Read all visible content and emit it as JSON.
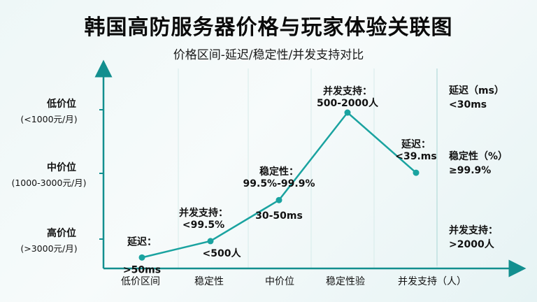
{
  "title": "韩国高防服务器价格与玩家体验关联图",
  "subtitle": "价格区间-延迟/稳定性/并发支持对比",
  "colors": {
    "line": "#1aa3a0",
    "axis": "#138f8f",
    "text": "#111111"
  },
  "chart_data": {
    "type": "line",
    "categories": [
      "低价区间",
      "稳定性",
      "中价位",
      "稳定性验",
      "并发支持（人）"
    ],
    "y_tick_labels": [
      {
        "main": "高价位",
        "sub": "(>3000元/月)"
      },
      {
        "main": "中价位",
        "sub": "(1000-3000元/月)"
      },
      {
        "main": "低价位",
        "sub": "(<1000元/月)"
      }
    ],
    "series": [
      {
        "values": [
          0.2,
          0.5,
          1.25,
          2.85,
          1.75
        ]
      }
    ],
    "ylim": [
      0,
      3.4
    ],
    "xlim": [
      0,
      5
    ],
    "point_labels": [
      {
        "point": 0,
        "above": "延迟：",
        "below": ">50ms"
      },
      {
        "point": 1,
        "above": "并发支持：\n<99.5%",
        "below": "<500人"
      },
      {
        "point": 2,
        "above": "稳定性：\n99.5%-99.9%",
        "below": "30-50ms"
      },
      {
        "point": 3,
        "above": "并发支持：\n500-2000人",
        "below": ""
      },
      {
        "point": 4,
        "above": "延迟：\n<39.ms",
        "below": ""
      }
    ],
    "right_legend": [
      {
        "label": "延迟（ms）",
        "value": "<30ms"
      },
      {
        "label": "稳定性（%）",
        "value": "≥99.9%"
      },
      {
        "label": "并发支持：",
        "value": ">2000人"
      }
    ],
    "grid": true
  }
}
